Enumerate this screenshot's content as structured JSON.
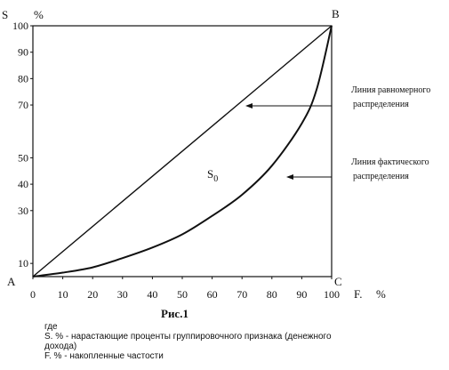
{
  "chart_data": {
    "type": "line",
    "title": "",
    "y_axis_label": "S %",
    "x_axis_label": "F. %",
    "xlim": [
      0,
      100
    ],
    "ylim": [
      5,
      100
    ],
    "x_ticks": [
      "0",
      "10",
      "20",
      "30",
      "40",
      "50",
      "60",
      "70",
      "80",
      "90",
      "100"
    ],
    "y_ticks": [
      "10",
      "30",
      "40",
      "50",
      "70",
      "80",
      "90",
      "100"
    ],
    "corner_labels": {
      "A": "A",
      "B": "B",
      "C": "C"
    },
    "area_label": "S",
    "area_label_sub": "0",
    "series": [
      {
        "name": "Линия равномерного распределения",
        "x": [
          0,
          100
        ],
        "y": [
          5,
          100
        ]
      },
      {
        "name": "Линия фактического распределения",
        "x": [
          0,
          10,
          20,
          30,
          40,
          50,
          60,
          70,
          80,
          90,
          95,
          100
        ],
        "y": [
          5,
          6.5,
          8.5,
          12,
          16,
          21,
          28,
          36,
          47,
          63,
          76,
          100
        ]
      }
    ],
    "annotations": [
      {
        "lines": [
          "Линия равномерного",
          "распределения"
        ]
      },
      {
        "lines": [
          "Линия фактического",
          "распределения"
        ]
      }
    ]
  },
  "caption": "Рис.1",
  "notes": {
    "where": "где",
    "line1": "S. % - нарастающие проценты группировочного признака (денежного",
    "line2": "дохода)",
    "line3": "F. % - накопленные частости"
  }
}
